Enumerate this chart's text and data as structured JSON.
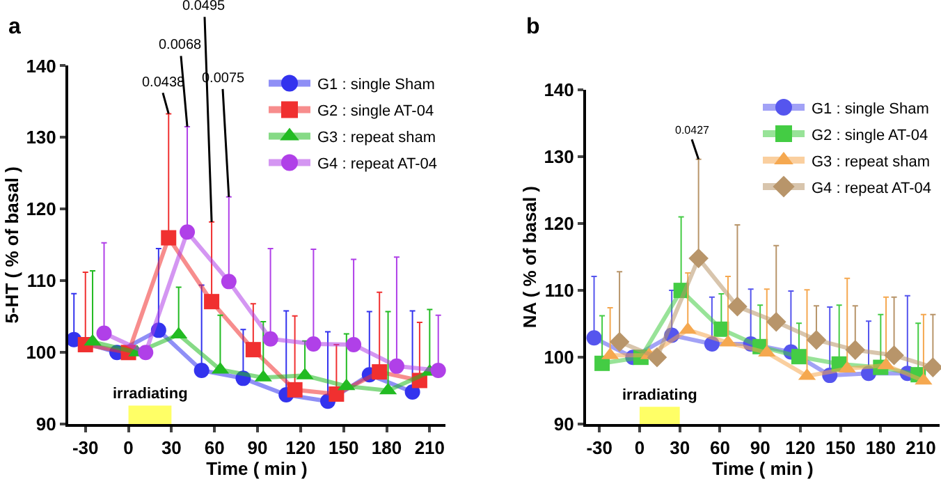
{
  "chart_data": [
    {
      "type": "line",
      "title": "a",
      "xlabel": "Time ( min )",
      "ylabel": "5-HT ( % of basal )",
      "xlim": [
        -42,
        221
      ],
      "xticks": [
        -30,
        0,
        30,
        60,
        90,
        120,
        150,
        180,
        210
      ],
      "ylim": [
        90,
        140
      ],
      "yticks": [
        90,
        100,
        110,
        120,
        130,
        140
      ],
      "grid": false,
      "legend": "top right",
      "annotations": [
        {
          "text": "0.0438",
          "x": 28,
          "y": 133.3
        },
        {
          "text": "0.0068",
          "x": 41,
          "y": 131.5
        },
        {
          "text": "0.0495",
          "x": 58,
          "y": 118.2
        },
        {
          "text": "0.0075",
          "x": 70,
          "y": 121.7
        }
      ],
      "bands": [
        {
          "axis": "x",
          "from": 0,
          "to": 30,
          "label": "irradiating",
          "color": "#ffff66"
        }
      ],
      "series": [
        {
          "name": "G1 : single Sham",
          "color": "#3333ee",
          "marker": "circle",
          "x": [
            -38,
            -8,
            21,
            51,
            80,
            110,
            139,
            168,
            198
          ],
          "values": [
            101.8,
            100,
            103.1,
            97.5,
            96.4,
            94.1,
            93.2,
            96.9,
            94.5
          ],
          "errors": [
            [
              101.8,
              108.2
            ],
            null,
            [
              103.1,
              114.5
            ],
            [
              97.5,
              109.4
            ],
            [
              96.4,
              103.2
            ],
            [
              94.1,
              105.8
            ],
            [
              93.2,
              102.9
            ],
            [
              96.9,
              105.7
            ],
            [
              94.5,
              105.8
            ]
          ]
        },
        {
          "name": "G2 : single AT-04",
          "color": "#f03030",
          "marker": "square",
          "x": [
            -30,
            0,
            28,
            58,
            87,
            116,
            145,
            175,
            203
          ],
          "values": [
            101.1,
            100,
            116,
            107.1,
            100.4,
            94.8,
            94.2,
            97.3,
            96.1
          ],
          "errors": [
            [
              101.1,
              111.2
            ],
            null,
            [
              116,
              133.3
            ],
            [
              107.1,
              118.2
            ],
            [
              100.4,
              106.8
            ],
            [
              94.8,
              105.1
            ],
            [
              94.2,
              101.1
            ],
            [
              97.3,
              108.4
            ],
            [
              96.1,
              104.2
            ]
          ]
        },
        {
          "name": "G3 : repeat sham",
          "color": "#22bb22",
          "marker": "triangle",
          "x": [
            -25,
            6,
            35,
            64,
            94,
            123,
            152,
            181,
            210
          ],
          "values": [
            101.5,
            100,
            102.5,
            97.6,
            96.5,
            96.8,
            95.3,
            94.7,
            97.3
          ],
          "errors": [
            [
              101.5,
              111.4
            ],
            null,
            [
              102.5,
              109.1
            ],
            [
              97.6,
              105.2
            ],
            [
              96.5,
              104.3
            ],
            [
              96.8,
              101.6
            ],
            [
              95.3,
              102.6
            ],
            [
              94.7,
              105.7
            ],
            [
              97.3,
              106
            ]
          ]
        },
        {
          "name": "G4 : repeat AT-04",
          "color": "#b040e8",
          "marker": "circle",
          "x": [
            -17,
            12,
            41,
            70,
            99,
            129,
            157,
            187,
            216
          ],
          "values": [
            102.7,
            100,
            116.8,
            109.9,
            101.9,
            101.2,
            101.1,
            98.1,
            97.5
          ],
          "errors": [
            [
              102.7,
              115.3
            ],
            null,
            [
              116.8,
              131.5
            ],
            [
              109.9,
              121.7
            ],
            [
              101.9,
              114.5
            ],
            [
              101.2,
              114.4
            ],
            [
              101.1,
              113
            ],
            [
              98.1,
              113.3
            ],
            [
              97.5,
              105.2
            ]
          ]
        }
      ]
    },
    {
      "type": "line",
      "title": "b",
      "xlabel": "Time ( min )",
      "ylabel": "NA ( % of basal )",
      "xlim": [
        -40,
        224
      ],
      "xticks": [
        -30,
        0,
        30,
        60,
        90,
        120,
        150,
        180,
        210
      ],
      "ylim": [
        90,
        140
      ],
      "yticks": [
        90,
        100,
        110,
        120,
        130,
        140
      ],
      "grid": false,
      "legend": "top right",
      "annotations": [
        {
          "text": "0.0427",
          "x": 44,
          "y": 129.6
        }
      ],
      "bands": [
        {
          "axis": "x",
          "from": 0,
          "to": 30,
          "label": "irradiating",
          "color": "#ffff66"
        }
      ],
      "series": [
        {
          "name": "G1 : single Sham",
          "color": "#5555ee",
          "marker": "circle",
          "x": [
            -34,
            -5,
            24,
            54,
            83,
            113,
            142,
            171,
            200
          ],
          "values": [
            102.9,
            100,
            103.3,
            102,
            102,
            100.8,
            97.3,
            97.6,
            97.6
          ],
          "errors": [
            [
              102.9,
              112.1
            ],
            null,
            [
              103.3,
              110
            ],
            [
              102,
              109
            ],
            [
              102,
              110.2
            ],
            [
              100.8,
              109.9
            ],
            [
              97.3,
              107.5
            ],
            [
              97.6,
              105.4
            ],
            [
              97.6,
              109.2
            ]
          ]
        },
        {
          "name": "G2 : single AT-04",
          "color": "#44cc44",
          "marker": "square",
          "x": [
            -28,
            1,
            31,
            61,
            90,
            119,
            149,
            180,
            208
          ],
          "values": [
            99.1,
            100,
            110,
            104.2,
            101.6,
            100.1,
            99,
            98.5,
            97.4
          ],
          "errors": [
            [
              99.1,
              106.2
            ],
            null,
            [
              110,
              121
            ],
            [
              104.2,
              109.5
            ],
            [
              101.6,
              107.8
            ],
            [
              100.1,
              105.1
            ],
            [
              99,
              107.8
            ],
            [
              98.5,
              106.4
            ],
            [
              97.4,
              105.1
            ]
          ]
        },
        {
          "name": "G3 : repeat sham",
          "color": "#f5a850",
          "marker": "triangle",
          "x": [
            -22,
            7,
            36,
            66,
            95,
            125,
            155,
            184,
            212
          ],
          "values": [
            100.3,
            100.3,
            104.1,
            102.2,
            100.7,
            97.2,
            98.3,
            98.8,
            96.5
          ],
          "errors": [
            [
              100.3,
              107.4
            ],
            null,
            [
              104.1,
              112.6
            ],
            [
              102.2,
              112.1
            ],
            [
              100.7,
              110.2
            ],
            [
              97.2,
              110.1
            ],
            [
              98.3,
              111.8
            ],
            [
              98.8,
              109
            ],
            [
              96.5,
              106.4
            ]
          ]
        },
        {
          "name": "G4 : repeat AT-04",
          "color": "#b8956a",
          "marker": "diamond",
          "x": [
            -15,
            13,
            44,
            73,
            102,
            132,
            161,
            190,
            219
          ],
          "values": [
            102.3,
            100,
            114.8,
            107.6,
            105.3,
            102.6,
            101.1,
            100.3,
            98.5
          ],
          "errors": [
            [
              102.3,
              112.8
            ],
            null,
            [
              114.8,
              129.6
            ],
            [
              107.6,
              119.8
            ],
            [
              105.3,
              116.7
            ],
            [
              102.6,
              107.7
            ],
            [
              101.1,
              107.7
            ],
            [
              100.3,
              109
            ],
            [
              98.5,
              106.4
            ]
          ]
        }
      ]
    }
  ]
}
